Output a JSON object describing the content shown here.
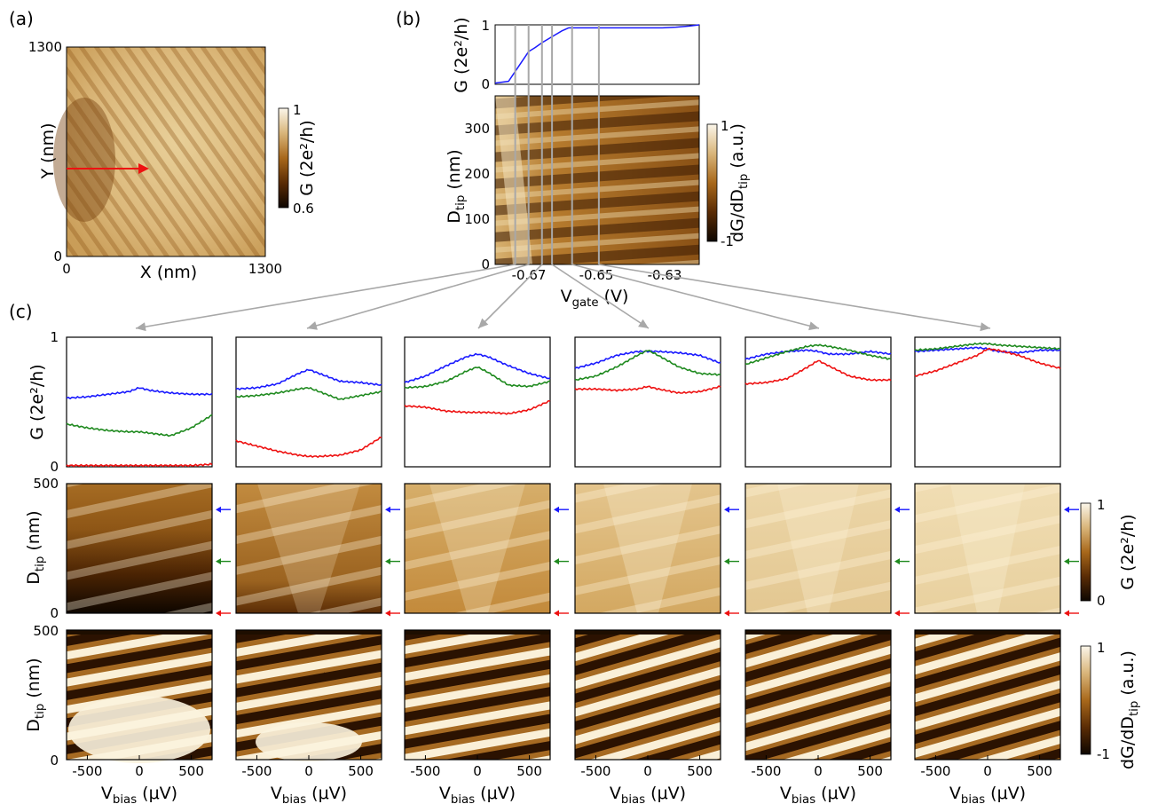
{
  "panels": {
    "a": "(a)",
    "b": "(b)",
    "c": "(c)"
  },
  "panel_a": {
    "x_label": "X (nm)",
    "y_label": "Y (nm)",
    "x_ticks": [
      "0",
      "1300"
    ],
    "y_ticks": [
      "0",
      "1300"
    ],
    "colorbar_label": "G (2e²/h)",
    "colorbar_ticks": [
      "0.6",
      "1"
    ]
  },
  "panel_b": {
    "top_y_label": "G (2e²/h)",
    "top_y_ticks": [
      "0",
      "1"
    ],
    "map_y_label": "D_tip (nm)",
    "map_y_ticks": [
      "0",
      "100",
      "200",
      "300"
    ],
    "x_label": "V_gate (V)",
    "x_ticks": [
      "-0.67",
      "-0.65",
      "-0.63"
    ],
    "colorbar_label": "dG/dD_tip (a.u.)",
    "colorbar_ticks": [
      "-1",
      "1"
    ]
  },
  "panel_c": {
    "top_y_label": "G (2e²/h)",
    "top_y_ticks": [
      "0",
      "1"
    ],
    "mid_y_label": "D_tip (nm)",
    "mid_y_ticks": [
      "0",
      "500"
    ],
    "bot_y_label": "D_tip (nm)",
    "bot_y_ticks": [
      "0",
      "500"
    ],
    "x_label": "V_bias (μV)",
    "x_ticks": [
      "-500",
      "0",
      "500"
    ],
    "mid_colorbar_label": "G (2e²/h)",
    "mid_colorbar_ticks": [
      "0",
      "1"
    ],
    "bot_colorbar_label": "dG/dD_tip (a.u.)",
    "bot_colorbar_ticks": [
      "-1",
      "1"
    ]
  },
  "colors": {
    "blue": "#1a1aff",
    "green": "#1f8a1f",
    "red": "#ee1111",
    "gray": "#a8a8a8",
    "dark": "#1e0e00",
    "tan": "#e9d3a4"
  },
  "chart_data": [
    {
      "type": "line",
      "panel": "b-top",
      "x_axis": "V_gate (V)",
      "y_axis": "G (2e²/h)",
      "ylim": [
        0,
        1
      ],
      "x": [
        -0.682,
        -0.678,
        -0.675,
        -0.672,
        -0.67,
        -0.668,
        -0.665,
        -0.662,
        -0.66,
        -0.655,
        -0.65,
        -0.645,
        -0.64,
        -0.635,
        -0.632,
        -0.628,
        -0.624,
        -0.621
      ],
      "series": [
        {
          "color": "#1a1aff",
          "values": [
            0.02,
            0.05,
            0.3,
            0.55,
            0.62,
            0.7,
            0.8,
            0.9,
            0.95,
            0.95,
            0.95,
            0.95,
            0.95,
            0.95,
            0.95,
            0.96,
            0.98,
            1.0
          ]
        }
      ],
      "gate_markers": [
        -0.676,
        -0.672,
        -0.668,
        -0.665,
        -0.659,
        -0.651
      ]
    },
    {
      "type": "line",
      "panel": "c-top-1",
      "x_axis": "V_bias (μV)",
      "ylim": [
        0,
        1
      ],
      "x": [
        -700,
        -500,
        -300,
        -100,
        0,
        100,
        300,
        500,
        700
      ],
      "series": [
        {
          "color": "#1a1aff",
          "values": [
            0.53,
            0.54,
            0.56,
            0.58,
            0.61,
            0.59,
            0.57,
            0.56,
            0.56
          ]
        },
        {
          "color": "#1f8a1f",
          "values": [
            0.33,
            0.3,
            0.28,
            0.27,
            0.27,
            0.26,
            0.24,
            0.3,
            0.4
          ]
        },
        {
          "color": "#ee1111",
          "values": [
            0.01,
            0.01,
            0.01,
            0.01,
            0.01,
            0.01,
            0.01,
            0.01,
            0.02
          ]
        }
      ]
    },
    {
      "type": "line",
      "panel": "c-top-2",
      "x_axis": "V_bias (μV)",
      "ylim": [
        0,
        1
      ],
      "x": [
        -700,
        -500,
        -300,
        -100,
        0,
        100,
        300,
        500,
        700
      ],
      "series": [
        {
          "color": "#1a1aff",
          "values": [
            0.6,
            0.61,
            0.64,
            0.72,
            0.75,
            0.72,
            0.66,
            0.65,
            0.63
          ]
        },
        {
          "color": "#1f8a1f",
          "values": [
            0.54,
            0.55,
            0.57,
            0.6,
            0.61,
            0.58,
            0.52,
            0.55,
            0.58
          ]
        },
        {
          "color": "#ee1111",
          "values": [
            0.2,
            0.16,
            0.12,
            0.09,
            0.08,
            0.08,
            0.09,
            0.13,
            0.23
          ]
        }
      ]
    },
    {
      "type": "line",
      "panel": "c-top-3",
      "x_axis": "V_bias (μV)",
      "ylim": [
        0,
        1
      ],
      "x": [
        -700,
        -500,
        -300,
        -100,
        0,
        100,
        300,
        500,
        700
      ],
      "series": [
        {
          "color": "#1a1aff",
          "values": [
            0.65,
            0.7,
            0.78,
            0.85,
            0.87,
            0.85,
            0.78,
            0.72,
            0.68
          ]
        },
        {
          "color": "#1f8a1f",
          "values": [
            0.61,
            0.62,
            0.66,
            0.74,
            0.77,
            0.73,
            0.63,
            0.62,
            0.66
          ]
        },
        {
          "color": "#ee1111",
          "values": [
            0.47,
            0.46,
            0.43,
            0.42,
            0.42,
            0.42,
            0.41,
            0.44,
            0.51
          ]
        }
      ]
    },
    {
      "type": "line",
      "panel": "c-top-4",
      "x_axis": "V_bias (μV)",
      "ylim": [
        0,
        1
      ],
      "x": [
        -700,
        -500,
        -300,
        -100,
        0,
        100,
        300,
        500,
        700
      ],
      "series": [
        {
          "color": "#1a1aff",
          "values": [
            0.76,
            0.8,
            0.86,
            0.89,
            0.89,
            0.89,
            0.88,
            0.86,
            0.8
          ]
        },
        {
          "color": "#1f8a1f",
          "values": [
            0.67,
            0.7,
            0.77,
            0.86,
            0.9,
            0.86,
            0.77,
            0.72,
            0.71
          ]
        },
        {
          "color": "#ee1111",
          "values": [
            0.6,
            0.6,
            0.59,
            0.6,
            0.62,
            0.6,
            0.57,
            0.58,
            0.62
          ]
        }
      ]
    },
    {
      "type": "line",
      "panel": "c-top-5",
      "x_axis": "V_bias (μV)",
      "ylim": [
        0,
        1
      ],
      "x": [
        -700,
        -500,
        -300,
        -100,
        0,
        100,
        300,
        500,
        700
      ],
      "series": [
        {
          "color": "#1a1aff",
          "values": [
            0.83,
            0.87,
            0.89,
            0.9,
            0.89,
            0.87,
            0.87,
            0.89,
            0.87
          ]
        },
        {
          "color": "#1f8a1f",
          "values": [
            0.79,
            0.84,
            0.89,
            0.93,
            0.94,
            0.93,
            0.9,
            0.86,
            0.83
          ]
        },
        {
          "color": "#ee1111",
          "values": [
            0.64,
            0.65,
            0.68,
            0.77,
            0.82,
            0.78,
            0.7,
            0.67,
            0.67
          ]
        }
      ]
    },
    {
      "type": "line",
      "panel": "c-top-6",
      "x_axis": "V_bias (μV)",
      "ylim": [
        0,
        1
      ],
      "x": [
        -700,
        -500,
        -300,
        -100,
        0,
        100,
        300,
        500,
        700
      ],
      "series": [
        {
          "color": "#1a1aff",
          "values": [
            0.89,
            0.9,
            0.91,
            0.92,
            0.91,
            0.89,
            0.88,
            0.9,
            0.9
          ]
        },
        {
          "color": "#1f8a1f",
          "values": [
            0.9,
            0.91,
            0.93,
            0.95,
            0.95,
            0.94,
            0.93,
            0.92,
            0.91
          ]
        },
        {
          "color": "#ee1111",
          "values": [
            0.7,
            0.74,
            0.8,
            0.86,
            0.91,
            0.9,
            0.86,
            0.8,
            0.76
          ]
        }
      ]
    }
  ]
}
